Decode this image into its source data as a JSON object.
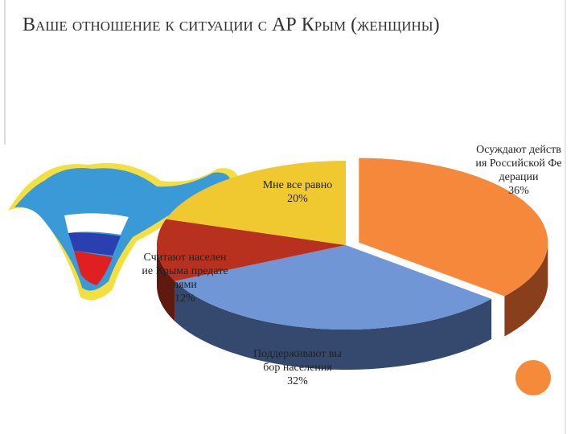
{
  "chart_data": {
    "type": "pie3d",
    "title": "Ваше отношение к ситуации с АР Крым (женщины)",
    "categories": [
      "Осуждают действия Российской Федерации",
      "Поддерживают выбор населения",
      "Считают население Крыма предателями",
      "Мне все равно"
    ],
    "values": [
      36,
      32,
      12,
      20
    ],
    "value_labels": [
      "36%",
      "32%",
      "12%",
      "20%"
    ],
    "colors": [
      "#f5883a",
      "#7096d6",
      "#b8311f",
      "#f0c830"
    ],
    "side_colors": [
      "#8a3f1c",
      "#35486e",
      "#5e1a0f",
      "#8a6f10"
    ],
    "exploded": [
      true,
      false,
      false,
      false
    ]
  }
}
